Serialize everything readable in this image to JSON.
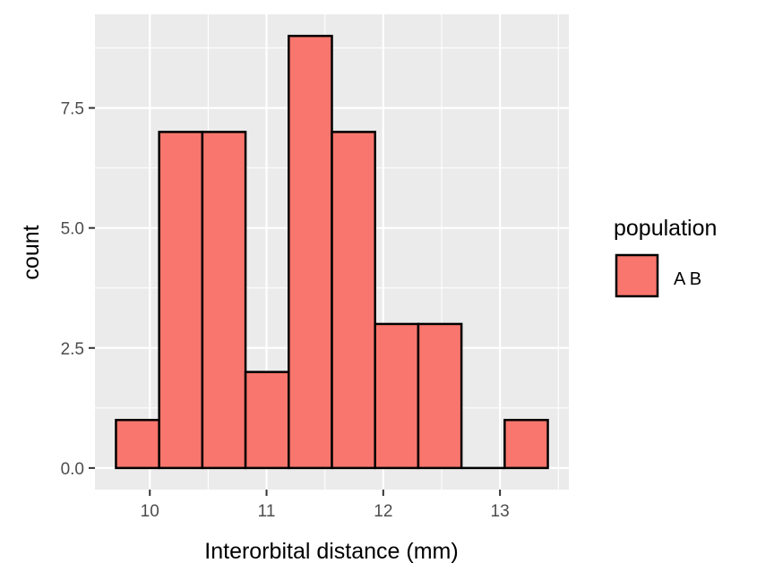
{
  "chart_data": {
    "type": "bar",
    "subtype": "histogram",
    "bins": [
      {
        "x_start": 9.71,
        "x_end": 10.08,
        "count": 1
      },
      {
        "x_start": 10.08,
        "x_end": 10.45,
        "count": 7
      },
      {
        "x_start": 10.45,
        "x_end": 10.82,
        "count": 7
      },
      {
        "x_start": 10.82,
        "x_end": 11.19,
        "count": 2
      },
      {
        "x_start": 11.19,
        "x_end": 11.56,
        "count": 9
      },
      {
        "x_start": 11.56,
        "x_end": 11.93,
        "count": 7
      },
      {
        "x_start": 11.93,
        "x_end": 12.3,
        "count": 3
      },
      {
        "x_start": 12.3,
        "x_end": 12.67,
        "count": 3
      },
      {
        "x_start": 12.67,
        "x_end": 13.04,
        "count": 0
      },
      {
        "x_start": 13.04,
        "x_end": 13.41,
        "count": 1
      }
    ],
    "xlabel": "Interorbital distance (mm)",
    "ylabel": "count",
    "xlim": [
      9.53,
      13.59
    ],
    "ylim": [
      -0.45,
      9.45
    ],
    "x_ticks": [
      10,
      11,
      12,
      13
    ],
    "x_tick_labels": [
      "10",
      "11",
      "12",
      "13"
    ],
    "y_ticks": [
      0,
      2.5,
      5,
      7.5
    ],
    "y_tick_labels": [
      "0.0",
      "2.5",
      "5.0",
      "7.5"
    ],
    "grid": true,
    "legend": {
      "title": "population",
      "placement": "right",
      "entries": [
        {
          "label": "A B",
          "color": "#F8766D"
        }
      ]
    },
    "colors": {
      "fill": "#F8766D",
      "outline": "#000000",
      "panel": "#EBEBEB",
      "grid": "#FFFFFF"
    }
  }
}
